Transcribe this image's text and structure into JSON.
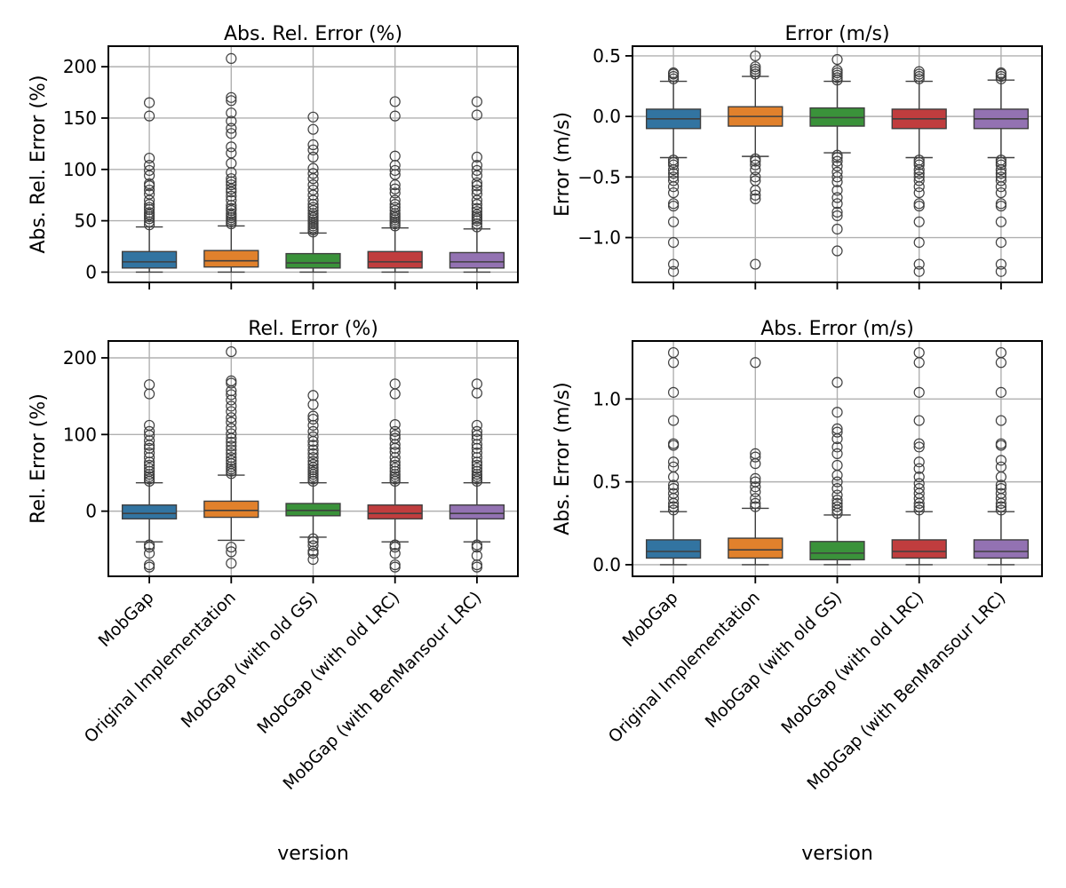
{
  "chart_data": [
    {
      "type": "box",
      "title": "Abs. Rel. Error (%)",
      "xlabel": "",
      "ylabel": "Abs. Rel. Error (%)",
      "ylim": [
        -10,
        220
      ],
      "yticks": [
        0,
        50,
        100,
        150,
        200
      ],
      "yticklabels": [
        "0",
        "50",
        "100",
        "150",
        "200"
      ],
      "grid": true,
      "categories": [
        "MobGap",
        "Original Implementation",
        "MobGap (with old GS)",
        "MobGap (with old LRC)",
        "MobGap (with BenMansour LRC)"
      ],
      "colors": [
        "#3274a1",
        "#e1812c",
        "#3a923a",
        "#c03d3e",
        "#9372b2"
      ],
      "boxes": [
        {
          "whislo": 0,
          "q1": 4,
          "med": 10,
          "q3": 20,
          "whishi": 44,
          "fliers": [
            46,
            49,
            52,
            54,
            56,
            58,
            61,
            63,
            66,
            70,
            76,
            80,
            84,
            86,
            94,
            99,
            104,
            111,
            152,
            165
          ]
        },
        {
          "whislo": 0,
          "q1": 5,
          "med": 11,
          "q3": 21,
          "whishi": 45,
          "fliers": [
            47,
            49,
            51,
            53,
            55,
            57,
            60,
            62,
            65,
            70,
            74,
            78,
            81,
            85,
            88,
            91,
            97,
            106,
            116,
            122,
            135,
            140,
            147,
            155,
            167,
            170,
            208
          ]
        },
        {
          "whislo": 0,
          "q1": 4,
          "med": 9,
          "q3": 18,
          "whishi": 38,
          "fliers": [
            39,
            41,
            43,
            45,
            47,
            49,
            51,
            53,
            55,
            57,
            60,
            63,
            66,
            70,
            75,
            80,
            85,
            91,
            96,
            101,
            112,
            119,
            124,
            139,
            151
          ]
        },
        {
          "whislo": 0,
          "q1": 4,
          "med": 10,
          "q3": 20,
          "whishi": 43,
          "fliers": [
            45,
            47,
            49,
            51,
            53,
            55,
            57,
            60,
            63,
            66,
            70,
            77,
            81,
            85,
            95,
            99,
            104,
            113,
            152,
            166
          ]
        },
        {
          "whislo": 0,
          "q1": 4,
          "med": 10,
          "q3": 19,
          "whishi": 42,
          "fliers": [
            44,
            47,
            50,
            52,
            54,
            56,
            59,
            62,
            66,
            70,
            76,
            80,
            84,
            87,
            94,
            99,
            104,
            112,
            153,
            166
          ]
        }
      ]
    },
    {
      "type": "box",
      "title": "Error (m/s)",
      "xlabel": "",
      "ylabel": "Error (m/s)",
      "ylim": [
        -1.37,
        0.58
      ],
      "yticks": [
        -1.0,
        -0.5,
        0.0,
        0.5
      ],
      "yticklabels": [
        "−1.0",
        "−0.5",
        "0.0",
        "0.5"
      ],
      "grid": true,
      "categories": [
        "MobGap",
        "Original Implementation",
        "MobGap (with old GS)",
        "MobGap (with old LRC)",
        "MobGap (with BenMansour LRC)"
      ],
      "colors": [
        "#3274a1",
        "#e1812c",
        "#3a923a",
        "#c03d3e",
        "#9372b2"
      ],
      "boxes": [
        {
          "whislo": -0.34,
          "q1": -0.1,
          "med": -0.02,
          "q3": 0.06,
          "whishi": 0.29,
          "fliers": [
            0.31,
            0.33,
            0.35,
            0.36,
            -0.36,
            -0.38,
            -0.4,
            -0.44,
            -0.47,
            -0.5,
            -0.53,
            -0.58,
            -0.63,
            -0.72,
            -0.74,
            -0.87,
            -1.04,
            -1.22,
            -1.28
          ]
        },
        {
          "whislo": -0.33,
          "q1": -0.08,
          "med": 0.0,
          "q3": 0.08,
          "whishi": 0.33,
          "fliers": [
            0.35,
            0.37,
            0.39,
            0.41,
            0.5,
            -0.35,
            -0.37,
            -0.4,
            -0.44,
            -0.5,
            -0.53,
            -0.61,
            -0.65,
            -0.68,
            -1.22
          ]
        },
        {
          "whislo": -0.3,
          "q1": -0.08,
          "med": -0.01,
          "q3": 0.07,
          "whishi": 0.29,
          "fliers": [
            0.3,
            0.32,
            0.34,
            0.36,
            0.38,
            0.47,
            -0.32,
            -0.34,
            -0.37,
            -0.41,
            -0.46,
            -0.5,
            -0.54,
            -0.61,
            -0.67,
            -0.72,
            -0.79,
            -0.82,
            -0.93,
            -1.11
          ]
        },
        {
          "whislo": -0.34,
          "q1": -0.1,
          "med": -0.02,
          "q3": 0.06,
          "whishi": 0.29,
          "fliers": [
            0.31,
            0.33,
            0.35,
            0.37,
            -0.36,
            -0.38,
            -0.4,
            -0.44,
            -0.47,
            -0.5,
            -0.53,
            -0.58,
            -0.63,
            -0.72,
            -0.74,
            -0.87,
            -1.04,
            -1.22,
            -1.28
          ]
        },
        {
          "whislo": -0.34,
          "q1": -0.1,
          "med": -0.02,
          "q3": 0.06,
          "whishi": 0.3,
          "fliers": [
            0.31,
            0.33,
            0.35,
            0.36,
            -0.36,
            -0.38,
            -0.4,
            -0.44,
            -0.47,
            -0.5,
            -0.53,
            -0.58,
            -0.63,
            -0.72,
            -0.74,
            -0.87,
            -1.04,
            -1.22,
            -1.28
          ]
        }
      ]
    },
    {
      "type": "box",
      "title": "Rel. Error (%)",
      "xlabel": "version",
      "ylabel": "Rel. Error (%)",
      "ylim": [
        -85,
        222
      ],
      "yticks": [
        0,
        100,
        200
      ],
      "yticklabels": [
        "0",
        "100",
        "200"
      ],
      "grid": true,
      "categories": [
        "MobGap",
        "Original Implementation",
        "MobGap (with old GS)",
        "MobGap (with old LRC)",
        "MobGap (with BenMansour LRC)"
      ],
      "colors": [
        "#3274a1",
        "#e1812c",
        "#3a923a",
        "#c03d3e",
        "#9372b2"
      ],
      "boxes": [
        {
          "whislo": -40,
          "q1": -10,
          "med": -3,
          "q3": 8,
          "whishi": 37,
          "fliers": [
            39,
            42,
            45,
            48,
            52,
            56,
            60,
            64,
            70,
            76,
            82,
            86,
            92,
            99,
            104,
            112,
            153,
            165,
            -44,
            -47,
            -55,
            -70,
            -73
          ]
        },
        {
          "whislo": -38,
          "q1": -8,
          "med": 1,
          "q3": 13,
          "whishi": 47,
          "fliers": [
            49,
            52,
            55,
            58,
            62,
            66,
            70,
            75,
            80,
            85,
            90,
            95,
            101,
            108,
            116,
            122,
            130,
            137,
            145,
            152,
            157,
            167,
            170,
            208,
            -47,
            -53,
            -68
          ]
        },
        {
          "whislo": -34,
          "q1": -6,
          "med": 1,
          "q3": 10,
          "whishi": 37,
          "fliers": [
            39,
            42,
            45,
            48,
            51,
            54,
            57,
            61,
            65,
            70,
            75,
            80,
            86,
            91,
            97,
            104,
            112,
            120,
            124,
            139,
            151,
            -36,
            -40,
            -45,
            -52,
            -55,
            -63
          ]
        },
        {
          "whislo": -40,
          "q1": -10,
          "med": -3,
          "q3": 8,
          "whishi": 37,
          "fliers": [
            39,
            42,
            45,
            48,
            52,
            56,
            60,
            64,
            70,
            77,
            82,
            87,
            95,
            99,
            104,
            113,
            153,
            166,
            -44,
            -47,
            -55,
            -70,
            -73
          ]
        },
        {
          "whislo": -40,
          "q1": -10,
          "med": -3,
          "q3": 8,
          "whishi": 37,
          "fliers": [
            39,
            42,
            45,
            48,
            52,
            56,
            60,
            64,
            70,
            76,
            82,
            87,
            94,
            99,
            104,
            112,
            154,
            166,
            -44,
            -47,
            -58,
            -70,
            -73
          ]
        }
      ]
    },
    {
      "type": "box",
      "title": "Abs. Error (m/s)",
      "xlabel": "version",
      "ylabel": "Abs. Error (m/s)",
      "ylim": [
        -0.07,
        1.35
      ],
      "yticks": [
        0.0,
        0.5,
        1.0
      ],
      "yticklabels": [
        "0.0",
        "0.5",
        "1.0"
      ],
      "grid": true,
      "categories": [
        "MobGap",
        "Original Implementation",
        "MobGap (with old GS)",
        "MobGap (with old LRC)",
        "MobGap (with BenMansour LRC)"
      ],
      "colors": [
        "#3274a1",
        "#e1812c",
        "#3a923a",
        "#c03d3e",
        "#9372b2"
      ],
      "boxes": [
        {
          "whislo": 0,
          "q1": 0.04,
          "med": 0.08,
          "q3": 0.15,
          "whishi": 0.32,
          "fliers": [
            0.33,
            0.35,
            0.37,
            0.4,
            0.43,
            0.46,
            0.48,
            0.53,
            0.59,
            0.62,
            0.72,
            0.73,
            0.87,
            1.04,
            1.22,
            1.28
          ]
        },
        {
          "whislo": 0,
          "q1": 0.04,
          "med": 0.09,
          "q3": 0.16,
          "whishi": 0.34,
          "fliers": [
            0.35,
            0.37,
            0.4,
            0.44,
            0.47,
            0.5,
            0.52,
            0.61,
            0.65,
            0.67,
            1.22
          ]
        },
        {
          "whislo": 0,
          "q1": 0.03,
          "med": 0.07,
          "q3": 0.14,
          "whishi": 0.3,
          "fliers": [
            0.31,
            0.33,
            0.35,
            0.37,
            0.39,
            0.42,
            0.46,
            0.5,
            0.54,
            0.6,
            0.67,
            0.71,
            0.76,
            0.8,
            0.82,
            0.92,
            1.1
          ]
        },
        {
          "whislo": 0,
          "q1": 0.04,
          "med": 0.08,
          "q3": 0.15,
          "whishi": 0.32,
          "fliers": [
            0.33,
            0.35,
            0.37,
            0.4,
            0.43,
            0.46,
            0.49,
            0.53,
            0.58,
            0.62,
            0.71,
            0.73,
            0.87,
            1.04,
            1.22,
            1.28
          ]
        },
        {
          "whislo": 0,
          "q1": 0.04,
          "med": 0.08,
          "q3": 0.15,
          "whishi": 0.32,
          "fliers": [
            0.33,
            0.35,
            0.37,
            0.4,
            0.43,
            0.46,
            0.48,
            0.53,
            0.59,
            0.63,
            0.72,
            0.73,
            0.87,
            1.04,
            1.22,
            1.28
          ]
        }
      ]
    }
  ]
}
